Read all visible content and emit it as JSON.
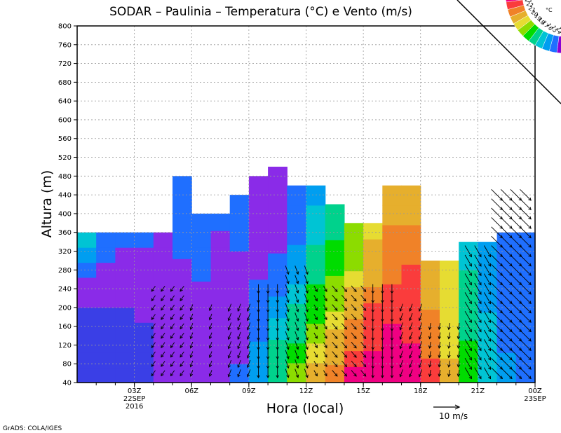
{
  "chart_data": {
    "type": "heatmap",
    "title": "SODAR – Paulinia – Temperatura (°C) e Vento (m/s)",
    "xlabel": "Hora (local)",
    "ylabel": "Altura (m)",
    "x_range_hours": [
      0,
      24
    ],
    "ylim": [
      40,
      800
    ],
    "y_ticks": [
      40,
      80,
      120,
      160,
      200,
      240,
      280,
      320,
      360,
      400,
      440,
      480,
      520,
      560,
      600,
      640,
      680,
      720,
      760,
      800
    ],
    "x_ticks": [
      {
        "hour": 3,
        "lines": [
          "03Z",
          "22SEP",
          "2016"
        ]
      },
      {
        "hour": 6,
        "lines": [
          "06Z"
        ]
      },
      {
        "hour": 9,
        "lines": [
          "09Z"
        ]
      },
      {
        "hour": 12,
        "lines": [
          "12Z"
        ]
      },
      {
        "hour": 15,
        "lines": [
          "15Z"
        ]
      },
      {
        "hour": 18,
        "lines": [
          "18Z"
        ]
      },
      {
        "hour": 21,
        "lines": [
          "21Z"
        ]
      },
      {
        "hour": 24,
        "lines": [
          "00Z",
          "23SEP"
        ]
      }
    ],
    "grid": true,
    "colorbar": {
      "unit": "°C",
      "placement": "top-right",
      "labels": [
        "24",
        "23",
        "22",
        "21",
        "20",
        "19",
        "18",
        "17",
        "16",
        "15",
        "14",
        "13"
      ]
    },
    "wind_reference": {
      "label": "10 m/s",
      "speed": 10
    },
    "data_top_by_hour": [
      360,
      360,
      360,
      360,
      360,
      480,
      400,
      400,
      440,
      480,
      500,
      460,
      460,
      420,
      380,
      380,
      460,
      460,
      300,
      300,
      340,
      340,
      360,
      360
    ],
    "temperature_by_hour": [
      [
        14.0,
        14.0,
        14.2,
        14.3,
        14.6,
        15.0,
        15.6,
        16.2,
        16.8,
        17.5
      ],
      [
        14.0,
        14.0,
        14.3,
        14.5,
        14.7,
        15.0,
        15.4,
        15.7,
        16.0,
        16.3
      ],
      [
        14.3,
        14.3,
        14.5,
        14.7,
        14.9,
        15.2,
        15.4,
        15.6,
        15.8,
        16.0
      ],
      [
        14.5,
        14.6,
        14.7,
        14.8,
        15.1,
        15.2,
        15.4,
        15.6,
        15.8,
        16.0
      ],
      [
        15.0,
        15.2,
        15.4,
        15.5,
        15.5,
        15.6,
        15.6,
        15.7,
        15.8,
        15.9
      ],
      [
        15.3,
        15.4,
        15.6,
        15.7,
        15.8,
        15.9,
        16.0,
        16.1,
        16.2,
        16.2
      ],
      [
        15.4,
        15.5,
        15.6,
        15.7,
        15.8,
        15.9,
        16.0,
        16.1,
        16.1,
        16.2
      ],
      [
        15.8,
        15.8,
        15.7,
        15.6,
        15.0,
        15.4,
        15.6,
        15.8,
        15.9,
        16.0
      ],
      [
        16.0,
        15.9,
        15.8,
        15.8,
        15.7,
        15.8,
        15.9,
        16.0,
        16.1,
        16.2
      ],
      [
        16.9,
        16.7,
        16.4,
        16.2,
        16.0,
        15.9,
        15.8,
        15.8,
        15.8,
        15.9
      ],
      [
        18.5,
        18.1,
        17.4,
        16.8,
        16.3,
        16.0,
        15.8,
        15.5,
        15.2,
        15.0
      ],
      [
        20.2,
        19.4,
        18.6,
        18.1,
        17.6,
        17.2,
        16.8,
        16.5,
        16.3,
        16.2
      ],
      [
        21.4,
        20.6,
        20.1,
        19.5,
        19.1,
        18.6,
        18.2,
        17.8,
        17.5,
        17.2
      ],
      [
        22.4,
        21.6,
        21.0,
        20.5,
        20.2,
        19.8,
        19.4,
        19.0,
        18.7,
        18.5
      ],
      [
        23.5,
        23.0,
        22.4,
        21.9,
        21.6,
        21.0,
        20.4,
        20.0,
        19.8,
        19.8
      ],
      [
        23.8,
        23.6,
        23.3,
        22.9,
        22.6,
        22.1,
        21.6,
        21.3,
        21.0,
        20.8
      ],
      [
        24.0,
        23.8,
        23.5,
        23.2,
        22.7,
        22.5,
        22.3,
        22.0,
        21.6,
        21.2
      ],
      [
        23.8,
        23.7,
        23.4,
        23.2,
        22.8,
        22.6,
        22.3,
        22.0,
        21.6,
        21.4
      ],
      [
        22.8,
        22.7,
        22.5,
        22.2,
        22.0,
        21.8,
        21.6,
        21.5,
        21.4,
        21.2
      ],
      [
        21.0,
        21.0,
        20.9,
        20.8,
        20.8,
        20.7,
        20.6,
        20.5,
        20.4,
        20.3
      ],
      [
        19.0,
        18.9,
        18.9,
        18.7,
        18.6,
        18.4,
        18.2,
        18.0,
        17.9,
        17.7
      ],
      [
        17.8,
        17.7,
        17.6,
        17.5,
        17.4,
        17.3,
        17.2,
        17.0,
        16.9,
        16.8
      ],
      [
        16.8,
        16.7,
        16.6,
        16.6,
        16.5,
        16.4,
        16.3,
        16.2,
        16.1,
        16.0
      ],
      [
        16.4,
        16.4,
        16.3,
        16.3,
        16.3,
        16.2,
        16.2,
        16.1,
        16.1,
        16.0
      ]
    ],
    "wind_barbs": [
      {
        "hours": [
          4.0,
          4.5,
          5.0,
          5.5
        ],
        "top": 240,
        "dir": 215,
        "speed": 2.5
      },
      {
        "hours": [
          6.0,
          7.0
        ],
        "top": 200,
        "dir": 200,
        "speed": 2.5
      },
      {
        "hours": [
          8.0,
          8.5,
          9.0
        ],
        "top": 200,
        "dir": 200,
        "speed": 3
      },
      {
        "hours": [
          9.5,
          10.0,
          10.5
        ],
        "top": 240,
        "dir": 180,
        "speed": 3.5
      },
      {
        "hours": [
          11.0,
          11.5,
          12.0
        ],
        "top": 280,
        "dir": 160,
        "speed": 3.5
      },
      {
        "hours": [
          12.5,
          13.0
        ],
        "top": 240,
        "dir": 150,
        "speed": 2.5
      },
      {
        "hours": [
          13.5,
          14.0,
          14.5,
          15.0
        ],
        "top": 240,
        "dir": 140,
        "speed": 3
      },
      {
        "hours": [
          15.5,
          16.0,
          16.5
        ],
        "top": 240,
        "dir": 180,
        "speed": 3.5
      },
      {
        "hours": [
          17.0,
          17.5,
          18.0
        ],
        "top": 200,
        "dir": 200,
        "speed": 3
      },
      {
        "hours": [
          18.5,
          19.0,
          19.5,
          20.0
        ],
        "top": 160,
        "dir": 190,
        "speed": 2.5
      },
      {
        "hours": [
          20.5,
          21.0,
          21.5
        ],
        "top": 320,
        "dir": 150,
        "speed": 5
      },
      {
        "hours": [
          22.0,
          22.5,
          23.0,
          23.5
        ],
        "top": 440,
        "dir": 135,
        "speed": 6
      }
    ]
  },
  "footer": {
    "credit": "GrADS: COLA/IGES"
  }
}
